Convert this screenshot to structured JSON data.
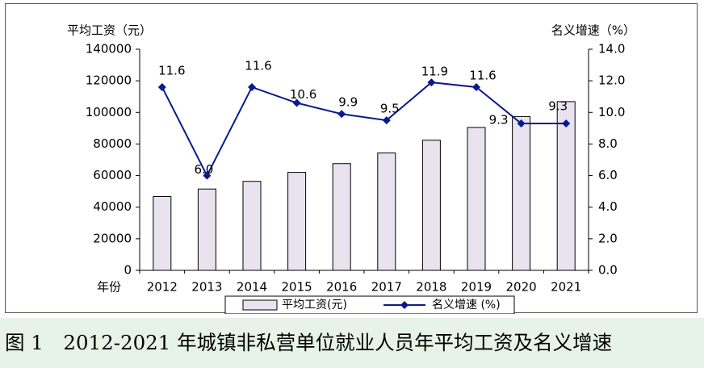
{
  "caption": "图 1　2012-2021 年城镇非私营单位就业人员年平均工资及名义增速",
  "chart_data": {
    "type": "bar+line",
    "categories": [
      "2012",
      "2013",
      "2014",
      "2015",
      "2016",
      "2017",
      "2018",
      "2019",
      "2020",
      "2021"
    ],
    "x_axis_title": "年份",
    "series": [
      {
        "name": "平均工资(元)",
        "type": "bar",
        "axis": "left",
        "values": [
          46769,
          51483,
          56360,
          62029,
          67569,
          74318,
          82413,
          90501,
          97379,
          106837
        ],
        "color": "#e8e3ef"
      },
      {
        "name": "名义增速 (%)",
        "type": "line",
        "axis": "right",
        "values": [
          11.6,
          6.0,
          11.6,
          10.6,
          9.9,
          9.5,
          11.9,
          11.6,
          9.3,
          9.3
        ],
        "data_labels": [
          "11.6",
          "6.0",
          "11.6",
          "10.6",
          "9.9",
          "9.5",
          "11.9",
          "11.6",
          "9.3",
          "9.3"
        ],
        "color": "#0a1a8c"
      }
    ],
    "left_axis": {
      "title": "平均工资（元）",
      "ylim": [
        0,
        140000
      ],
      "ticks": [
        "0",
        "20000",
        "40000",
        "60000",
        "80000",
        "100000",
        "120000",
        "140000"
      ]
    },
    "right_axis": {
      "title": "名义增速（%）",
      "ylim": [
        0,
        14
      ],
      "ticks": [
        "0.0",
        "2.0",
        "4.0",
        "6.0",
        "8.0",
        "10.0",
        "12.0",
        "14.0"
      ]
    },
    "legend_position": "bottom",
    "grid": false
  }
}
